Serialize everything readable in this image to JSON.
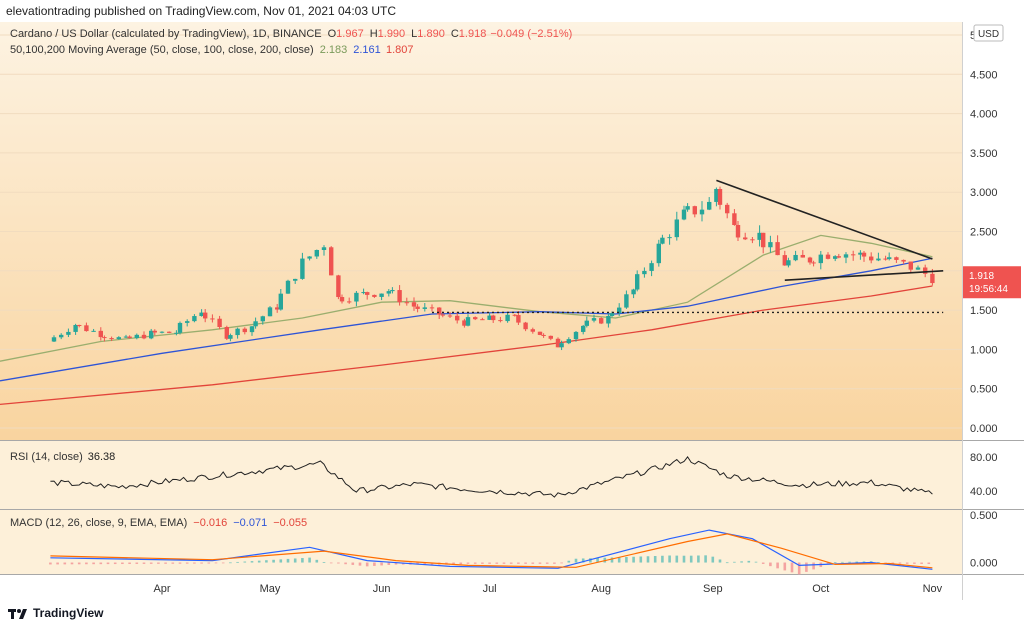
{
  "header": {
    "publisher": "elevationtrading published on TradingView.com, Nov 01, 2021 04:03 UTC"
  },
  "legend": {
    "symbol": "Cardano / US Dollar (calculated by TradingView), 1D, BINANCE",
    "ohlc": [
      {
        "k": "O",
        "v": "1.967"
      },
      {
        "k": "H",
        "v": "1.990"
      },
      {
        "k": "L",
        "v": "1.890"
      },
      {
        "k": "C",
        "v": "1.918"
      }
    ],
    "change": "−0.049 (−2.51%)",
    "ma_label": "50,100,200 Moving Average (50, close, 100, close, 200, close)",
    "ma_values": [
      {
        "v": "2.183",
        "color": "#7a9a5a"
      },
      {
        "v": "2.161",
        "color": "#2e54d6"
      },
      {
        "v": "1.807",
        "color": "#e2443a"
      }
    ],
    "rsi_label": "RSI (14, close)",
    "rsi_value": "36.38",
    "macd_label": "MACD (12, 26, close, 9, EMA, EMA)",
    "macd_values": [
      {
        "v": "−0.016",
        "color": "#e2443a"
      },
      {
        "v": "−0.071",
        "color": "#2e54d6"
      },
      {
        "v": "−0.055",
        "color": "#e2443a"
      }
    ]
  },
  "price_tag": {
    "price": "1.918",
    "countdown": "19:56:44",
    "color": "#ef5350"
  },
  "currency": "USD",
  "colors": {
    "up": "#26a69a",
    "down": "#ef5350",
    "ma50": "#9aae6e",
    "ma100": "#2e54d6",
    "ma200": "#e2443a",
    "macd": "#2962ff",
    "signal": "#ff6d00",
    "rsi": "#222222"
  },
  "footer": {
    "brand": "TradingView"
  },
  "chart_data": [
    {
      "type": "candlestick",
      "title": "Cardano / US Dollar (calculated by TradingView), 1D, BINANCE",
      "ylim": [
        -0.1,
        5.2
      ],
      "y_ticks": [
        "0.000",
        "0.500",
        "1.000",
        "1.500",
        "2.000",
        "2.500",
        "3.000",
        "3.500",
        "4.000",
        "4.500",
        "5."
      ],
      "x_ticks": [
        "Apr",
        "May",
        "Jun",
        "Jul",
        "Aug",
        "Sep",
        "Oct",
        "Nov"
      ],
      "close_series": [
        {
          "date": "2021-03-01",
          "close": 1.1
        },
        {
          "date": "2021-03-08",
          "close": 1.32
        },
        {
          "date": "2021-03-15",
          "close": 1.2
        },
        {
          "date": "2021-03-22",
          "close": 1.12
        },
        {
          "date": "2021-03-29",
          "close": 1.2
        },
        {
          "date": "2021-04-05",
          "close": 1.22
        },
        {
          "date": "2021-04-12",
          "close": 1.5
        },
        {
          "date": "2021-04-19",
          "close": 1.18
        },
        {
          "date": "2021-04-26",
          "close": 1.3
        },
        {
          "date": "2021-05-03",
          "close": 1.55
        },
        {
          "date": "2021-05-10",
          "close": 2.1
        },
        {
          "date": "2021-05-16",
          "close": 2.35
        },
        {
          "date": "2021-05-20",
          "close": 1.65
        },
        {
          "date": "2021-05-27",
          "close": 1.7
        },
        {
          "date": "2021-06-03",
          "close": 1.75
        },
        {
          "date": "2021-06-10",
          "close": 1.55
        },
        {
          "date": "2021-06-17",
          "close": 1.45
        },
        {
          "date": "2021-06-24",
          "close": 1.35
        },
        {
          "date": "2021-07-01",
          "close": 1.38
        },
        {
          "date": "2021-07-08",
          "close": 1.4
        },
        {
          "date": "2021-07-15",
          "close": 1.2
        },
        {
          "date": "2021-07-20",
          "close": 1.05
        },
        {
          "date": "2021-07-27",
          "close": 1.3
        },
        {
          "date": "2021-08-03",
          "close": 1.4
        },
        {
          "date": "2021-08-10",
          "close": 1.75
        },
        {
          "date": "2021-08-17",
          "close": 2.3
        },
        {
          "date": "2021-08-24",
          "close": 2.7
        },
        {
          "date": "2021-08-31",
          "close": 2.85
        },
        {
          "date": "2021-09-02",
          "close": 3.05
        },
        {
          "date": "2021-09-07",
          "close": 2.55
        },
        {
          "date": "2021-09-14",
          "close": 2.45
        },
        {
          "date": "2021-09-21",
          "close": 2.1
        },
        {
          "date": "2021-09-28",
          "close": 2.15
        },
        {
          "date": "2021-10-05",
          "close": 2.25
        },
        {
          "date": "2021-10-12",
          "close": 2.2
        },
        {
          "date": "2021-10-19",
          "close": 2.15
        },
        {
          "date": "2021-10-26",
          "close": 2.05
        },
        {
          "date": "2021-11-01",
          "close": 1.918
        }
      ],
      "moving_averages": [
        {
          "name": "MA 50",
          "color": "#9aae6e",
          "points": [
            [
              "2021-02-15",
              0.85
            ],
            [
              "2021-03-15",
              1.1
            ],
            [
              "2021-04-15",
              1.25
            ],
            [
              "2021-05-10",
              1.4
            ],
            [
              "2021-06-01",
              1.6
            ],
            [
              "2021-06-20",
              1.62
            ],
            [
              "2021-07-15",
              1.48
            ],
            [
              "2021-08-05",
              1.4
            ],
            [
              "2021-08-25",
              1.6
            ],
            [
              "2021-09-15",
              2.2
            ],
            [
              "2021-10-01",
              2.45
            ],
            [
              "2021-10-15",
              2.35
            ],
            [
              "2021-11-01",
              2.18
            ]
          ]
        },
        {
          "name": "MA 100",
          "color": "#2e54d6",
          "points": [
            [
              "2021-02-15",
              0.6
            ],
            [
              "2021-04-01",
              0.95
            ],
            [
              "2021-05-15",
              1.25
            ],
            [
              "2021-06-15",
              1.45
            ],
            [
              "2021-07-15",
              1.48
            ],
            [
              "2021-08-05",
              1.45
            ],
            [
              "2021-08-25",
              1.55
            ],
            [
              "2021-09-20",
              1.8
            ],
            [
              "2021-10-15",
              2.0
            ],
            [
              "2021-11-01",
              2.16
            ]
          ]
        },
        {
          "name": "MA 200",
          "color": "#e2443a",
          "points": [
            [
              "2021-02-15",
              0.3
            ],
            [
              "2021-04-15",
              0.55
            ],
            [
              "2021-06-01",
              0.8
            ],
            [
              "2021-07-15",
              1.05
            ],
            [
              "2021-08-15",
              1.25
            ],
            [
              "2021-09-15",
              1.5
            ],
            [
              "2021-10-15",
              1.68
            ],
            [
              "2021-11-01",
              1.807
            ]
          ]
        }
      ],
      "drawings": [
        {
          "kind": "trendline",
          "from": [
            "2021-09-02",
            3.15
          ],
          "to": [
            "2021-11-01",
            2.15
          ]
        },
        {
          "kind": "trendline",
          "from": [
            "2021-09-21",
            1.88
          ],
          "to": [
            "2021-11-04",
            2.0
          ]
        },
        {
          "kind": "horizontal-dotted",
          "from": [
            "2021-06-15",
            1.47
          ],
          "to": [
            "2021-11-04",
            1.47
          ]
        }
      ]
    },
    {
      "type": "line",
      "title": "RSI (14, close)",
      "ylim": [
        20,
        100
      ],
      "y_ticks": [
        "80.00",
        "40.00"
      ],
      "series": [
        {
          "name": "RSI",
          "points": [
            [
              "2021-03-01",
              50
            ],
            [
              "2021-03-20",
              45
            ],
            [
              "2021-04-10",
              55
            ],
            [
              "2021-05-15",
              72
            ],
            [
              "2021-05-25",
              40
            ],
            [
              "2021-06-10",
              48
            ],
            [
              "2021-06-25",
              42
            ],
            [
              "2021-07-20",
              35
            ],
            [
              "2021-08-15",
              65
            ],
            [
              "2021-08-25",
              78
            ],
            [
              "2021-09-05",
              58
            ],
            [
              "2021-09-25",
              47
            ],
            [
              "2021-10-15",
              50
            ],
            [
              "2021-11-01",
              36.38
            ]
          ]
        }
      ]
    },
    {
      "type": "line",
      "title": "MACD (12, 26, close, 9, EMA, EMA)",
      "ylim": [
        -0.12,
        0.55
      ],
      "y_ticks": [
        "0.500",
        "0.000"
      ],
      "series": [
        {
          "name": "MACD",
          "points": [
            [
              "2021-03-01",
              0.05
            ],
            [
              "2021-04-15",
              0.02
            ],
            [
              "2021-05-12",
              0.16
            ],
            [
              "2021-05-28",
              0.02
            ],
            [
              "2021-06-20",
              -0.04
            ],
            [
              "2021-07-20",
              -0.06
            ],
            [
              "2021-08-20",
              0.25
            ],
            [
              "2021-08-31",
              0.34
            ],
            [
              "2021-09-12",
              0.25
            ],
            [
              "2021-09-25",
              -0.03
            ],
            [
              "2021-10-15",
              0.0
            ],
            [
              "2021-11-01",
              -0.071
            ]
          ]
        },
        {
          "name": "Signal",
          "points": [
            [
              "2021-03-01",
              0.07
            ],
            [
              "2021-04-15",
              0.03
            ],
            [
              "2021-05-16",
              0.12
            ],
            [
              "2021-06-05",
              0.02
            ],
            [
              "2021-06-25",
              -0.03
            ],
            [
              "2021-07-25",
              -0.05
            ],
            [
              "2021-08-25",
              0.22
            ],
            [
              "2021-09-05",
              0.3
            ],
            [
              "2021-09-20",
              0.15
            ],
            [
              "2021-10-05",
              -0.02
            ],
            [
              "2021-10-20",
              -0.01
            ],
            [
              "2021-11-01",
              -0.055
            ]
          ]
        }
      ],
      "histogram_last": -0.016
    }
  ]
}
